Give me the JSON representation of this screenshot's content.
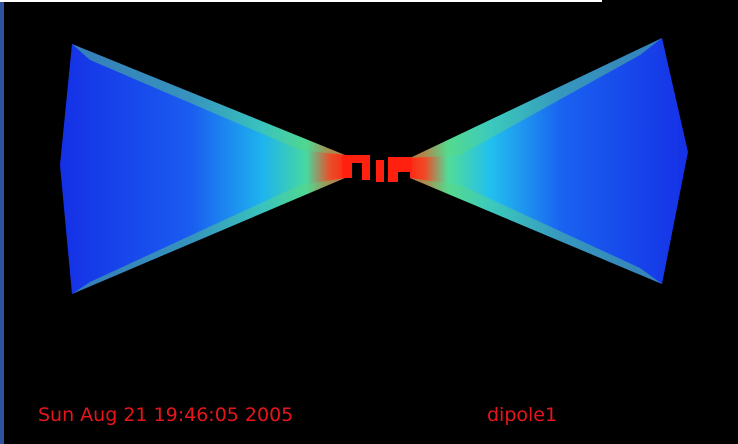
{
  "footer": {
    "timestamp": "Sun Aug 21 19:46:05 2005",
    "model": "dipole1"
  }
}
